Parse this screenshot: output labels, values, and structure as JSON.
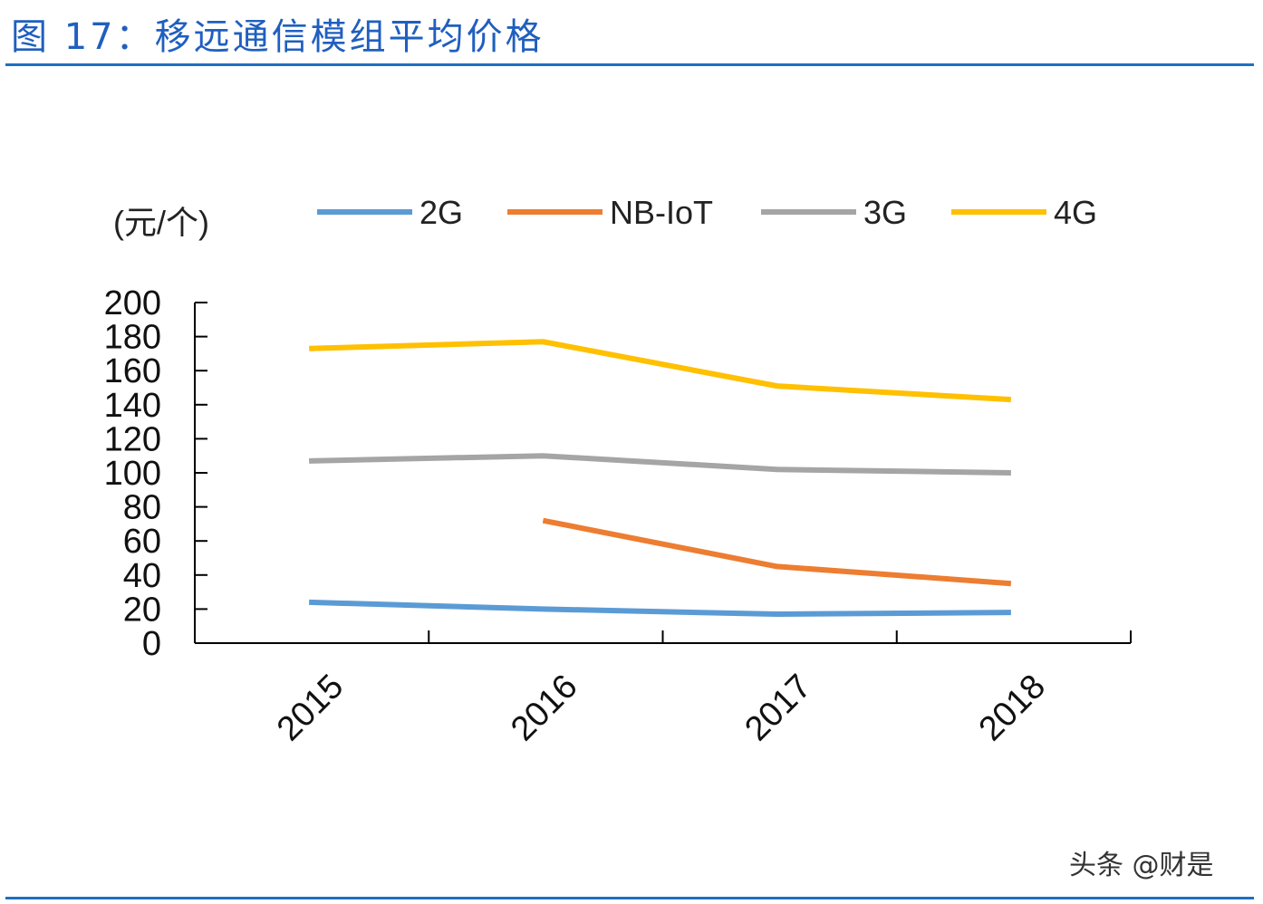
{
  "title": "图 17：移远通信模组平均价格",
  "watermark": "头条 @财是",
  "chart_data": {
    "type": "line",
    "title": "",
    "ylabel": "(元/个)",
    "xlabel": "",
    "categories": [
      "2015",
      "2016",
      "2017",
      "2018"
    ],
    "ylim": [
      0,
      200
    ],
    "yticks": [
      0,
      20,
      40,
      60,
      80,
      100,
      120,
      140,
      160,
      180,
      200
    ],
    "grid": false,
    "legend": "top",
    "series": [
      {
        "name": "2G",
        "color": "#5b9bd5",
        "values": [
          24,
          20,
          17,
          18
        ]
      },
      {
        "name": "NB-IoT",
        "color": "#ed7d31",
        "values": [
          null,
          72,
          45,
          35
        ]
      },
      {
        "name": "3G",
        "color": "#a5a5a5",
        "values": [
          107,
          110,
          102,
          100
        ]
      },
      {
        "name": "4G",
        "color": "#ffc000",
        "values": [
          173,
          177,
          151,
          143
        ]
      }
    ]
  }
}
